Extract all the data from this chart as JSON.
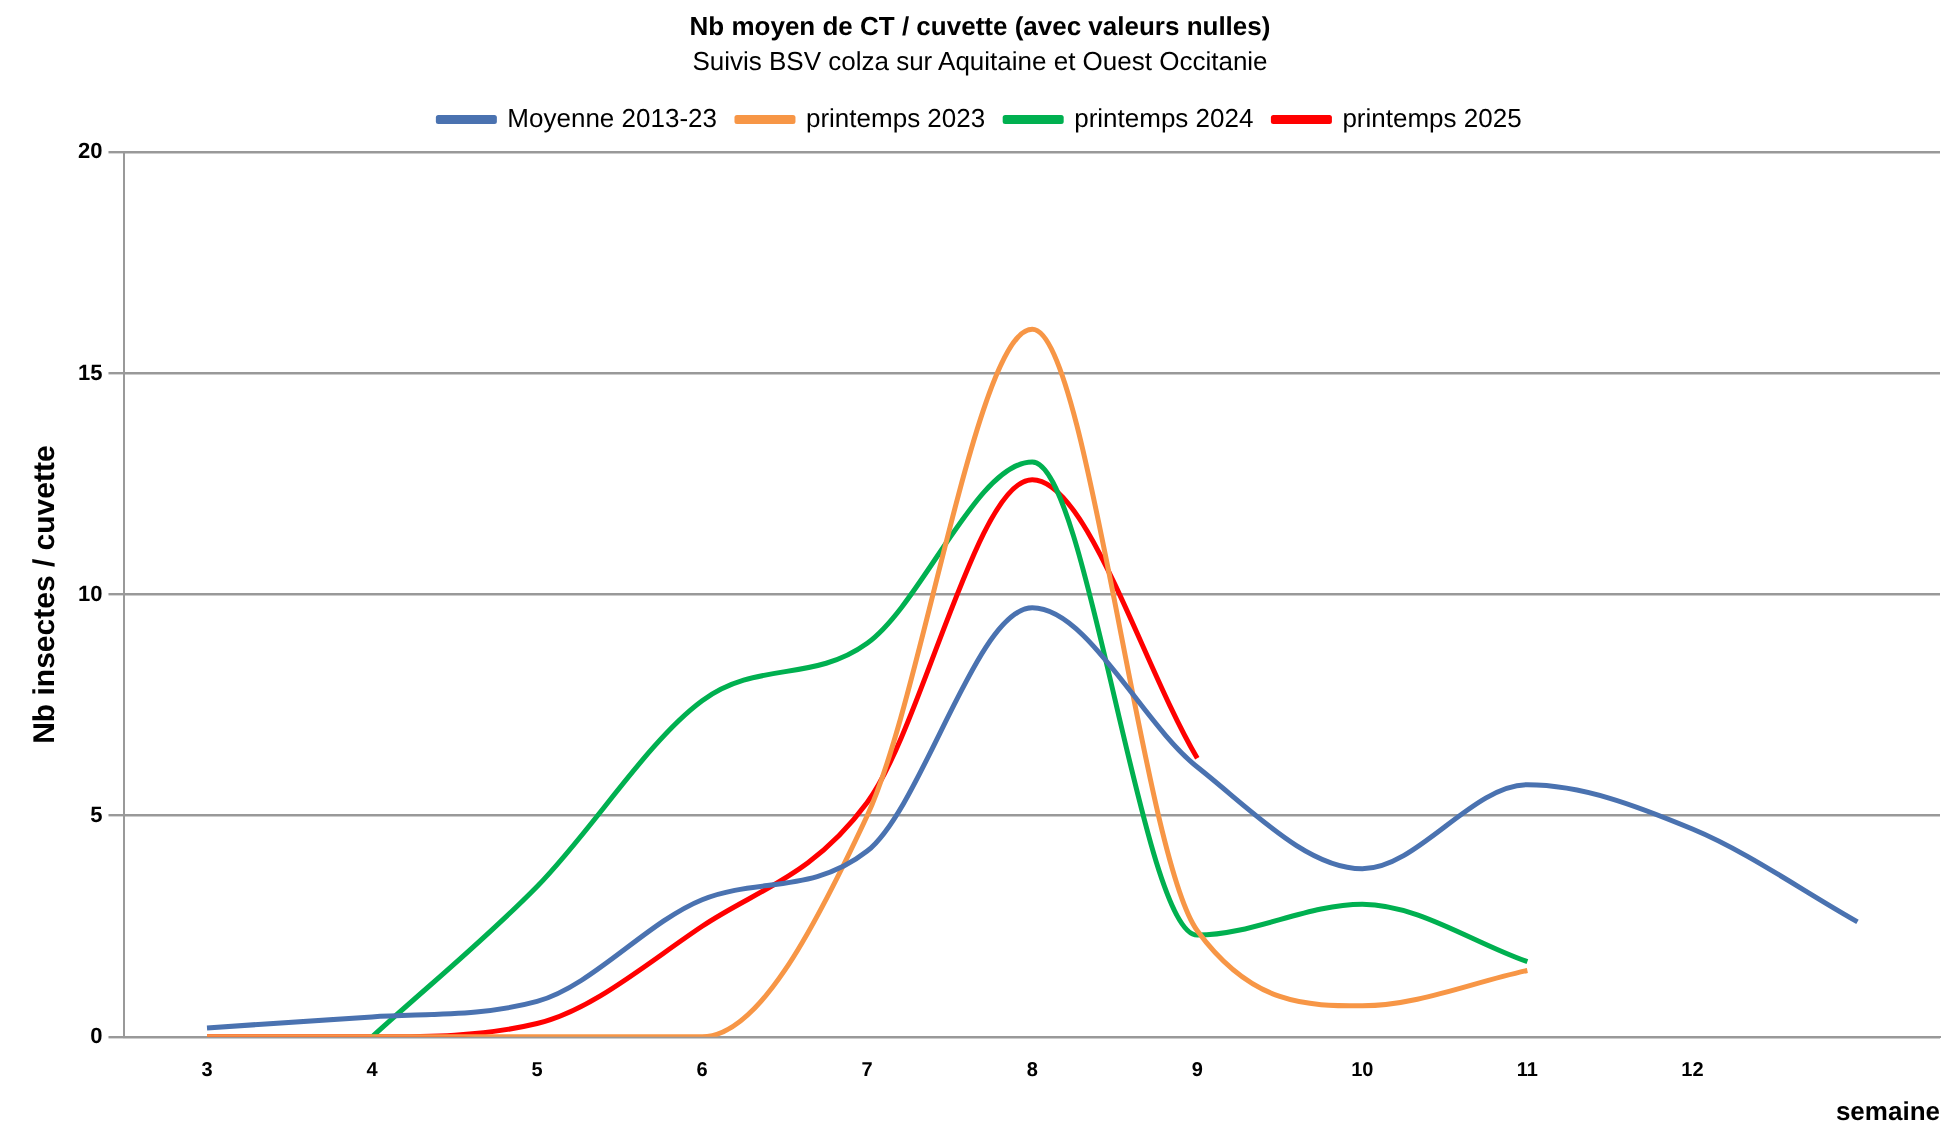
{
  "chart_data": {
    "type": "line",
    "title": "Nb moyen de CT / cuvette (avec valeurs nulles)",
    "subtitle": "Suivis BSV colza sur Aquitaine et Ouest Occitanie",
    "xlabel": "semaine",
    "ylabel": "Nb insectes / cuvette",
    "categories": [
      "3",
      "4",
      "5",
      "6",
      "7",
      "8",
      "9",
      "10",
      "11",
      "12",
      null
    ],
    "series": [
      {
        "name": "Moyenne 2013-23",
        "color": "#4a72b0",
        "values": [
          0.2,
          0.45,
          0.8,
          3.1,
          4.2,
          9.7,
          6.1,
          3.8,
          5.7,
          4.7,
          2.6
        ]
      },
      {
        "name": "printemps 2023",
        "color": "#f79646",
        "values": [
          0,
          0,
          0,
          0,
          5,
          16,
          2.4,
          0.7,
          1.5,
          null,
          null
        ]
      },
      {
        "name": "printemps 2024",
        "color": "#00b050",
        "values": [
          null,
          0,
          3.4,
          7.6,
          8.9,
          13,
          2.3,
          3,
          1.7,
          null,
          null
        ]
      },
      {
        "name": "printemps 2025",
        "color": "#ff0000",
        "values": [
          0,
          0,
          0.3,
          2.5,
          5.3,
          12.6,
          6.3,
          null,
          null,
          null,
          null
        ]
      }
    ],
    "ylim": [
      0,
      20
    ],
    "yticks": [
      0,
      5,
      10,
      15,
      20
    ],
    "grid": "y",
    "legend": "top",
    "marker": "none",
    "line_style": "solid"
  }
}
